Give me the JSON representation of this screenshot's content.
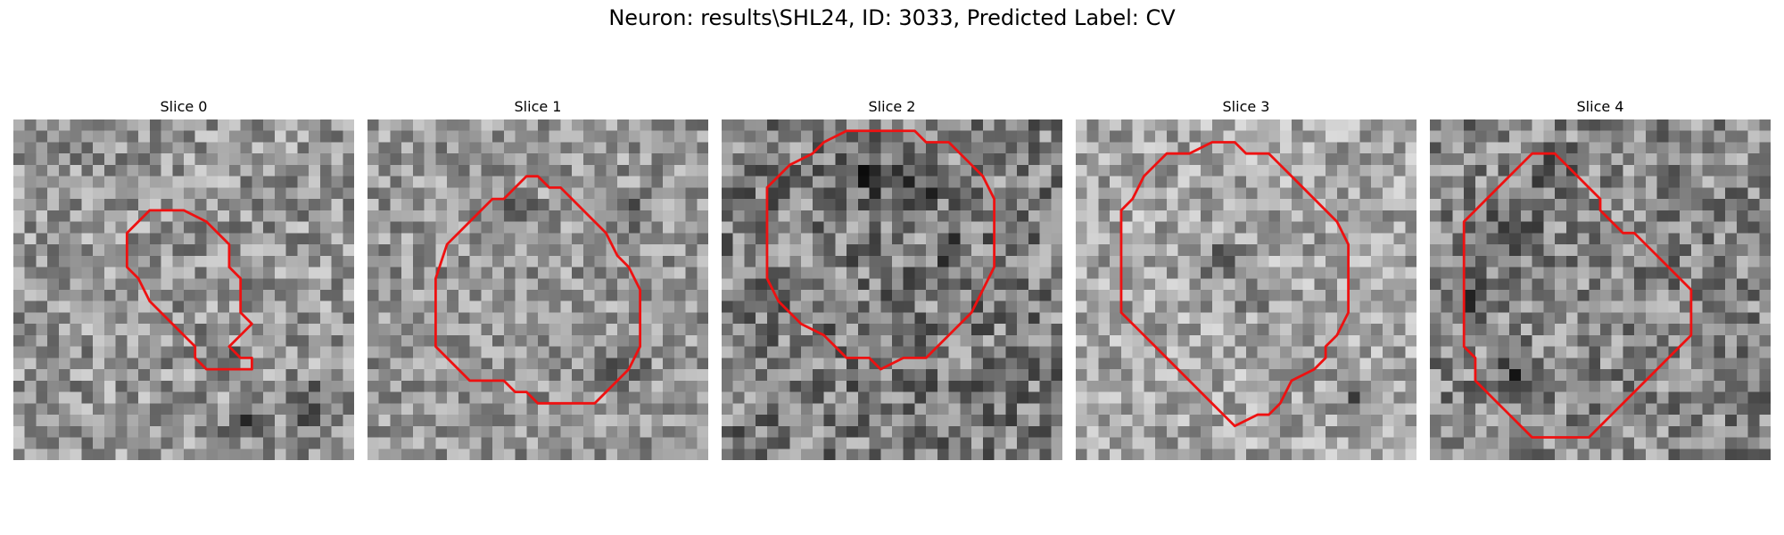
{
  "figure": {
    "title": "Neuron: results\\SHL24, ID: 3033, Predicted Label: CV"
  },
  "contour_color": "#ee1111",
  "slices": [
    {
      "title": "Slice 0",
      "contour": [
        [
          13,
          8
        ],
        [
          15,
          8
        ],
        [
          17,
          9
        ],
        [
          18,
          10
        ],
        [
          19,
          11
        ],
        [
          19,
          13
        ],
        [
          20,
          14
        ],
        [
          20,
          17
        ],
        [
          21,
          18
        ],
        [
          20,
          19
        ],
        [
          19,
          20
        ],
        [
          20,
          21
        ],
        [
          21,
          21
        ],
        [
          21,
          22
        ],
        [
          17,
          22
        ],
        [
          16,
          21
        ],
        [
          16,
          20
        ],
        [
          14,
          18
        ],
        [
          12,
          16
        ],
        [
          11,
          14
        ],
        [
          10,
          13
        ],
        [
          10,
          11
        ],
        [
          10,
          10
        ],
        [
          11,
          9
        ],
        [
          12,
          8
        ]
      ],
      "tone_center": 150,
      "tone_contrast": 60,
      "dark_spots": [
        [
          20,
          26,
          3
        ],
        [
          26,
          25,
          4
        ],
        [
          19,
          20,
          1
        ]
      ]
    },
    {
      "title": "Slice 1",
      "contour": [
        [
          14,
          5
        ],
        [
          15,
          5
        ],
        [
          16,
          6
        ],
        [
          17,
          6
        ],
        [
          18,
          7
        ],
        [
          19,
          8
        ],
        [
          20,
          9
        ],
        [
          21,
          10
        ],
        [
          22,
          12
        ],
        [
          23,
          13
        ],
        [
          24,
          15
        ],
        [
          24,
          16
        ],
        [
          24,
          20
        ],
        [
          23,
          22
        ],
        [
          22,
          23
        ],
        [
          21,
          24
        ],
        [
          20,
          25
        ],
        [
          17,
          25
        ],
        [
          15,
          25
        ],
        [
          14,
          24
        ],
        [
          13,
          24
        ],
        [
          12,
          23
        ],
        [
          9,
          23
        ],
        [
          8,
          22
        ],
        [
          7,
          21
        ],
        [
          6,
          20
        ],
        [
          6,
          17
        ],
        [
          6,
          14
        ],
        [
          7,
          11
        ],
        [
          8,
          10
        ],
        [
          9,
          9
        ],
        [
          10,
          8
        ],
        [
          11,
          7
        ],
        [
          12,
          7
        ],
        [
          13,
          6
        ]
      ],
      "tone_center": 150,
      "tone_contrast": 55,
      "dark_spots": [
        [
          22,
          8,
          3
        ],
        [
          22,
          21,
          3
        ],
        [
          13,
          7,
          2
        ]
      ]
    },
    {
      "title": "Slice 2",
      "contour": [
        [
          12,
          1
        ],
        [
          17,
          1
        ],
        [
          18,
          2
        ],
        [
          20,
          2
        ],
        [
          21,
          3
        ],
        [
          22,
          4
        ],
        [
          23,
          5
        ],
        [
          24,
          7
        ],
        [
          24,
          10
        ],
        [
          24,
          13
        ],
        [
          23,
          15
        ],
        [
          22,
          17
        ],
        [
          21,
          18
        ],
        [
          20,
          19
        ],
        [
          19,
          20
        ],
        [
          18,
          21
        ],
        [
          16,
          21
        ],
        [
          14,
          22
        ],
        [
          13,
          21
        ],
        [
          11,
          21
        ],
        [
          10,
          20
        ],
        [
          9,
          19
        ],
        [
          7,
          18
        ],
        [
          6,
          17
        ],
        [
          5,
          16
        ],
        [
          4,
          14
        ],
        [
          4,
          10
        ],
        [
          4,
          6
        ],
        [
          5,
          5
        ],
        [
          6,
          4
        ],
        [
          8,
          3
        ],
        [
          9,
          2
        ],
        [
          11,
          1
        ]
      ],
      "tone_center": 125,
      "tone_contrast": 70,
      "dark_spots": [
        [
          12,
          4,
          4
        ],
        [
          17,
          6,
          3
        ],
        [
          20,
          11,
          2
        ]
      ]
    },
    {
      "title": "Slice 3",
      "contour": [
        [
          10,
          3
        ],
        [
          12,
          2
        ],
        [
          14,
          2
        ],
        [
          15,
          3
        ],
        [
          17,
          3
        ],
        [
          18,
          4
        ],
        [
          19,
          5
        ],
        [
          20,
          6
        ],
        [
          21,
          7
        ],
        [
          22,
          8
        ],
        [
          23,
          9
        ],
        [
          24,
          11
        ],
        [
          24,
          14
        ],
        [
          24,
          17
        ],
        [
          23,
          19
        ],
        [
          22,
          20
        ],
        [
          22,
          21
        ],
        [
          21,
          22
        ],
        [
          19,
          23
        ],
        [
          18,
          25
        ],
        [
          17,
          26
        ],
        [
          16,
          26
        ],
        [
          14,
          27
        ],
        [
          13,
          26
        ],
        [
          12,
          25
        ],
        [
          11,
          24
        ],
        [
          10,
          23
        ],
        [
          9,
          22
        ],
        [
          8,
          21
        ],
        [
          7,
          20
        ],
        [
          6,
          19
        ],
        [
          5,
          18
        ],
        [
          4,
          17
        ],
        [
          4,
          15
        ],
        [
          4,
          12
        ],
        [
          4,
          8
        ],
        [
          5,
          7
        ],
        [
          6,
          5
        ],
        [
          7,
          4
        ],
        [
          8,
          3
        ],
        [
          9,
          3
        ]
      ],
      "tone_center": 165,
      "tone_contrast": 55,
      "dark_spots": [
        [
          12,
          12,
          3
        ],
        [
          15,
          15,
          2
        ],
        [
          24,
          24,
          3
        ]
      ]
    },
    {
      "title": "Slice 4",
      "contour": [
        [
          9,
          3
        ],
        [
          11,
          3
        ],
        [
          12,
          4
        ],
        [
          13,
          5
        ],
        [
          14,
          6
        ],
        [
          15,
          7
        ],
        [
          15,
          8
        ],
        [
          16,
          9
        ],
        [
          17,
          10
        ],
        [
          18,
          10
        ],
        [
          19,
          11
        ],
        [
          20,
          12
        ],
        [
          21,
          13
        ],
        [
          22,
          14
        ],
        [
          23,
          15
        ],
        [
          23,
          17
        ],
        [
          23,
          19
        ],
        [
          22,
          20
        ],
        [
          21,
          21
        ],
        [
          20,
          22
        ],
        [
          19,
          23
        ],
        [
          18,
          24
        ],
        [
          17,
          25
        ],
        [
          16,
          26
        ],
        [
          15,
          27
        ],
        [
          14,
          28
        ],
        [
          9,
          28
        ],
        [
          8,
          27
        ],
        [
          7,
          26
        ],
        [
          6,
          25
        ],
        [
          5,
          24
        ],
        [
          4,
          23
        ],
        [
          4,
          21
        ],
        [
          3,
          20
        ],
        [
          3,
          16
        ],
        [
          3,
          11
        ],
        [
          3,
          9
        ],
        [
          4,
          8
        ],
        [
          5,
          7
        ],
        [
          6,
          6
        ],
        [
          7,
          5
        ],
        [
          8,
          4
        ]
      ],
      "tone_center": 135,
      "tone_contrast": 65,
      "dark_spots": [
        [
          7,
          9,
          3
        ],
        [
          3,
          15,
          3
        ],
        [
          10,
          4,
          3
        ],
        [
          7,
          22,
          2
        ]
      ]
    }
  ]
}
